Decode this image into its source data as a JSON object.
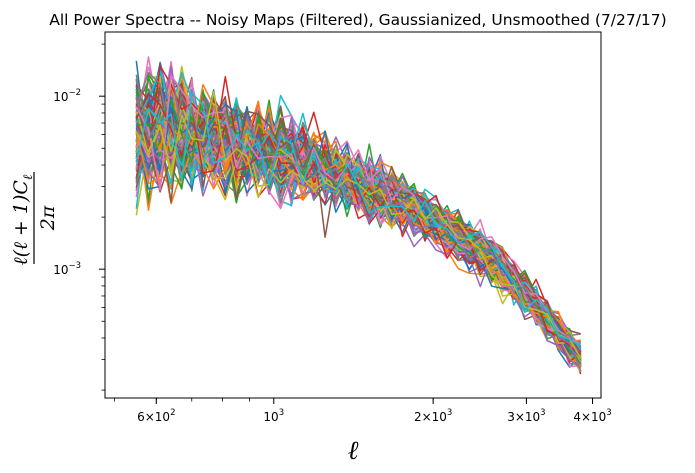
{
  "chart_data": {
    "type": "line",
    "title": "All Power Spectra -- Noisy Maps (Filtered), Gaussianized, Unsmoothed (7/27/17)",
    "xlabel": "ℓ",
    "ylabel": "ℓ(ℓ + 1)Cℓ / 2π",
    "ylabel_numerator": "ℓ(ℓ + 1)C",
    "ylabel_numerator_sub": "ℓ",
    "ylabel_denominator": "2π",
    "x_scale": "log",
    "y_scale": "log",
    "xlim": [
      480,
      4150
    ],
    "ylim": [
      0.00018,
      0.0235
    ],
    "grid": false,
    "legend": "none",
    "x_ticks": [
      {
        "value": 600,
        "base": "6×10",
        "exp": "2"
      },
      {
        "value": 1000,
        "base": "10",
        "exp": "3"
      },
      {
        "value": 2000,
        "base": "2×10",
        "exp": "3"
      },
      {
        "value": 3000,
        "base": "3×10",
        "exp": "3"
      },
      {
        "value": 4000,
        "base": "4×10",
        "exp": "3"
      }
    ],
    "y_ticks": [
      {
        "value": 0.01,
        "base": "10",
        "exp": "−2"
      },
      {
        "value": 0.001,
        "base": "10",
        "exp": "−3"
      }
    ],
    "x": [
      550,
      580,
      610,
      640,
      670,
      700,
      735,
      770,
      810,
      850,
      890,
      935,
      980,
      1030,
      1080,
      1135,
      1190,
      1250,
      1310,
      1375,
      1445,
      1515,
      1590,
      1670,
      1750,
      1840,
      1930,
      2025,
      2125,
      2230,
      2340,
      2455,
      2580,
      2705,
      2840,
      2980,
      3130,
      3285,
      3450,
      3620,
      3800
    ],
    "mean_spectrum": [
      0.006,
      0.0064,
      0.0065,
      0.0064,
      0.0062,
      0.006,
      0.0058,
      0.0056,
      0.0054,
      0.0052,
      0.005,
      0.0049,
      0.0047,
      0.0045,
      0.0043,
      0.0041,
      0.0039,
      0.0037,
      0.0035,
      0.0033,
      0.0031,
      0.0029,
      0.0027,
      0.0025,
      0.0024,
      0.0022,
      0.002,
      0.00185,
      0.0017,
      0.00155,
      0.0014,
      0.00125,
      0.00112,
      0.00098,
      0.00084,
      0.00072,
      0.00061,
      0.00052,
      0.00043,
      0.00036,
      0.00031
    ],
    "scatter_factor": [
      0.4,
      0.4,
      0.39,
      0.38,
      0.37,
      0.36,
      0.35,
      0.34,
      0.33,
      0.32,
      0.31,
      0.3,
      0.29,
      0.28,
      0.27,
      0.26,
      0.25,
      0.24,
      0.23,
      0.22,
      0.21,
      0.2,
      0.19,
      0.18,
      0.17,
      0.165,
      0.16,
      0.155,
      0.15,
      0.145,
      0.14,
      0.135,
      0.13,
      0.125,
      0.12,
      0.115,
      0.11,
      0.105,
      0.1,
      0.1,
      0.1
    ],
    "num_series": 160,
    "colors": [
      "#1f77b4",
      "#ff7f0e",
      "#2ca02c",
      "#d62728",
      "#9467bd",
      "#8c564b",
      "#e377c2",
      "#7f7f7f",
      "#bcbd22",
      "#17becf"
    ]
  }
}
